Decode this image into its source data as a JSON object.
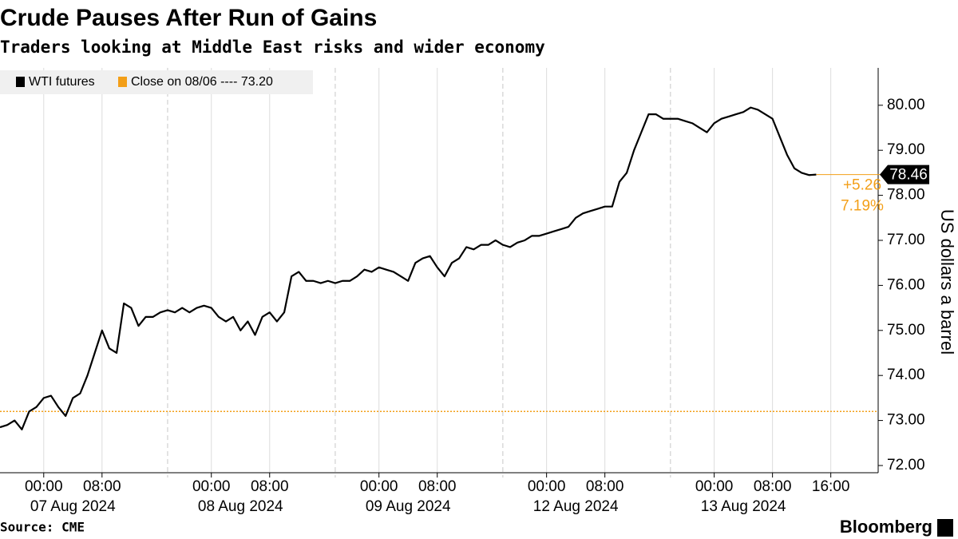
{
  "chart_data": {
    "type": "line",
    "title": "Crude Pauses After Run of Gains",
    "subtitle": "Traders looking at Middle East risks and wider economy",
    "y_axis_label": "US dollars a barrel",
    "source": "Source: CME",
    "brand": "Bloomberg",
    "x": [
      0,
      1,
      2,
      3,
      4,
      5,
      6,
      7,
      8,
      9,
      10,
      11,
      12,
      13,
      14,
      15,
      16,
      17,
      18,
      19,
      20,
      21,
      22,
      23,
      24,
      25,
      26,
      27,
      28,
      29,
      30,
      31,
      32,
      33,
      34,
      35,
      36,
      37,
      38,
      39,
      40,
      41,
      42,
      43,
      44,
      45,
      46,
      47,
      48,
      49,
      50,
      51,
      52,
      53,
      54,
      55,
      56,
      57,
      58,
      59,
      60,
      61,
      62,
      63,
      64,
      65,
      66,
      67,
      68,
      69,
      70,
      71,
      72,
      73,
      74,
      75,
      76,
      77,
      78,
      79,
      80,
      81,
      82,
      83,
      84,
      85,
      86,
      87,
      88,
      89,
      90,
      91,
      92,
      93,
      94,
      95,
      96,
      97,
      98,
      99,
      100,
      101,
      102,
      103,
      104,
      105,
      106,
      107,
      108,
      109,
      110,
      111,
      112
    ],
    "series": [
      {
        "name": "WTI futures",
        "color": "#000000",
        "values": [
          72.85,
          72.9,
          73.0,
          72.8,
          73.2,
          73.3,
          73.5,
          73.55,
          73.3,
          73.1,
          73.5,
          73.6,
          74.0,
          74.5,
          75.0,
          74.6,
          74.5,
          75.6,
          75.5,
          75.1,
          75.3,
          75.3,
          75.4,
          75.45,
          75.4,
          75.5,
          75.4,
          75.5,
          75.55,
          75.5,
          75.3,
          75.2,
          75.3,
          75.0,
          75.2,
          74.9,
          75.3,
          75.4,
          75.2,
          75.4,
          76.2,
          76.3,
          76.1,
          76.1,
          76.05,
          76.1,
          76.05,
          76.1,
          76.1,
          76.2,
          76.35,
          76.3,
          76.4,
          76.35,
          76.3,
          76.2,
          76.1,
          76.5,
          76.6,
          76.65,
          76.4,
          76.2,
          76.5,
          76.6,
          76.85,
          76.8,
          76.9,
          76.9,
          77.0,
          76.9,
          76.85,
          76.95,
          77.0,
          77.1,
          77.1,
          77.15,
          77.2,
          77.25,
          77.3,
          77.5,
          77.6,
          77.65,
          77.7,
          77.75,
          77.75,
          78.3,
          78.5,
          79.0,
          79.4,
          79.8,
          79.8,
          79.7,
          79.7,
          79.7,
          79.65,
          79.6,
          79.5,
          79.4,
          79.6,
          79.7,
          79.75,
          79.8,
          79.85,
          79.95,
          79.9,
          79.8,
          79.7,
          79.3,
          78.9,
          78.6,
          78.5,
          78.45,
          78.46
        ]
      }
    ],
    "last_value_label": "78.46",
    "reference_line": {
      "name": "Close on 08/06 ----",
      "value": 73.2,
      "value_label": "73.20",
      "color": "#f39f18"
    },
    "change": {
      "value": 5.26,
      "label": "+5.26"
    },
    "change_percent": {
      "value": 7.19,
      "label": "7.19%"
    },
    "xlim": [
      0,
      120.5
    ],
    "xticks": [
      {
        "value": 6,
        "label": "00:00"
      },
      {
        "value": 14,
        "label": "08:00"
      },
      {
        "value": 29,
        "label": "00:00"
      },
      {
        "value": 37,
        "label": "08:00"
      },
      {
        "value": 52,
        "label": "00:00"
      },
      {
        "value": 60,
        "label": "08:00"
      },
      {
        "value": 75,
        "label": "00:00"
      },
      {
        "value": 83,
        "label": "08:00"
      },
      {
        "value": 98,
        "label": "00:00"
      },
      {
        "value": 106,
        "label": "08:00"
      },
      {
        "value": 114,
        "label": "16:00"
      }
    ],
    "date_labels": [
      "07 Aug 2024",
      "08 Aug 2024",
      "09 Aug 2024",
      "12 Aug 2024",
      "13 Aug 2024"
    ],
    "session_breaks": [
      23,
      46,
      69,
      92
    ],
    "ylim": [
      71.84,
      80.83
    ],
    "yticks": [
      {
        "value": 72,
        "label": "72.00"
      },
      {
        "value": 73,
        "label": "73.00"
      },
      {
        "value": 74,
        "label": "74.00"
      },
      {
        "value": 75,
        "label": "75.00"
      },
      {
        "value": 76,
        "label": "76.00"
      },
      {
        "value": 77,
        "label": "77.00"
      },
      {
        "value": 78,
        "label": "78.00"
      },
      {
        "value": 79,
        "label": "79.00"
      },
      {
        "value": 80,
        "label": "80.00"
      }
    ],
    "grid": true
  }
}
